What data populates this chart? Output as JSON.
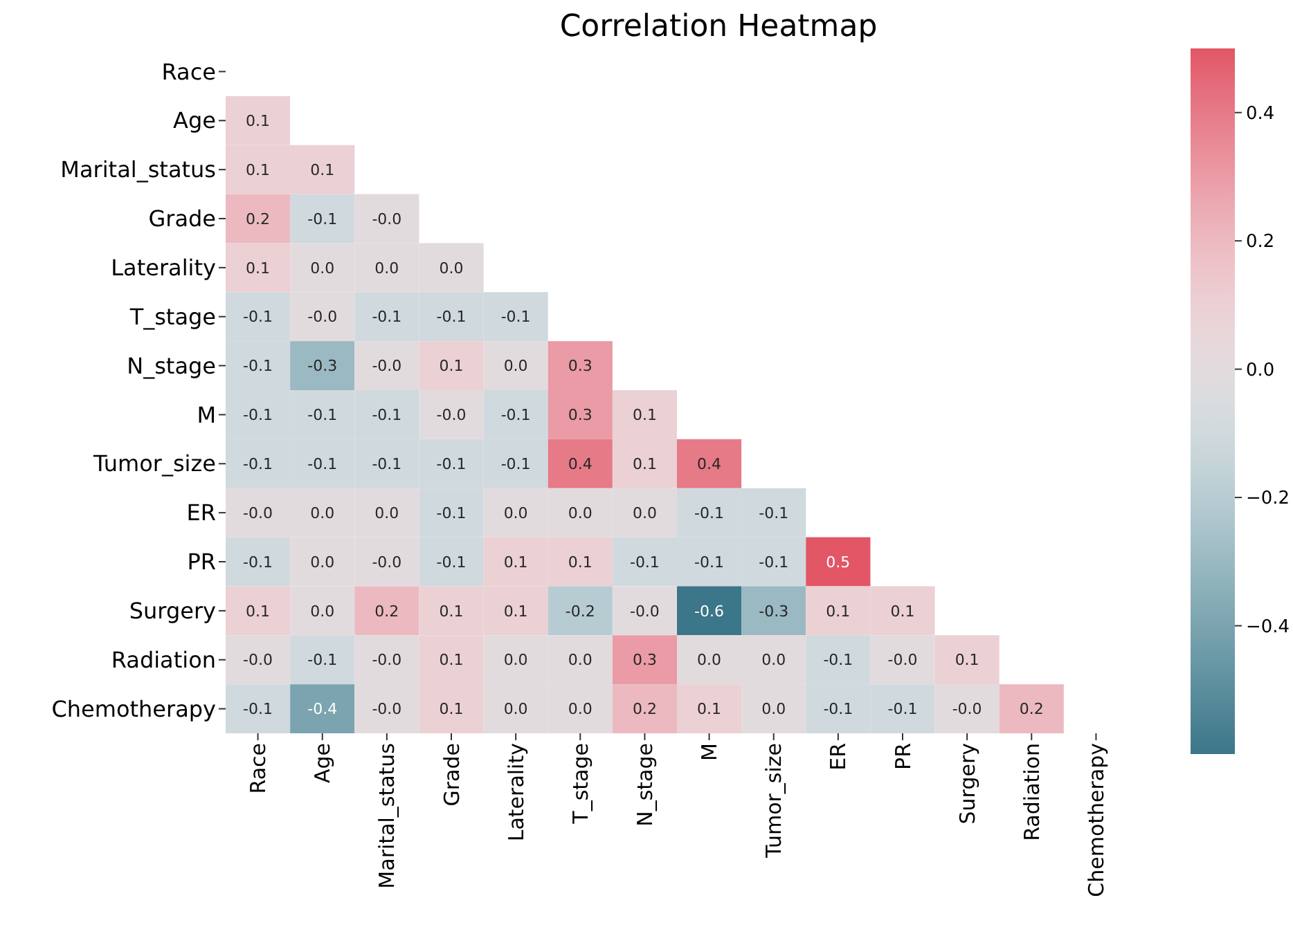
{
  "chart_data": {
    "type": "heatmap",
    "title": "Correlation Heatmap",
    "categories": [
      "Race",
      "Age",
      "Marital_status",
      "Grade",
      "Laterality",
      "T_stage",
      "N_stage",
      "M",
      "Tumor_size",
      "ER",
      "PR",
      "Surgery",
      "Radiation",
      "Chemotherapy"
    ],
    "y_categories": [
      "Race",
      "Age",
      "Marital_status",
      "Grade",
      "Laterality",
      "T_stage",
      "N_stage",
      "M",
      "Tumor_size",
      "ER",
      "PR",
      "Surgery",
      "Radiation",
      "Chemotherapy"
    ],
    "cells": [
      [
        null,
        null,
        null,
        null,
        null,
        null,
        null,
        null,
        null,
        null,
        null,
        null,
        null,
        null
      ],
      [
        0.1,
        null,
        null,
        null,
        null,
        null,
        null,
        null,
        null,
        null,
        null,
        null,
        null,
        null
      ],
      [
        0.1,
        0.1,
        null,
        null,
        null,
        null,
        null,
        null,
        null,
        null,
        null,
        null,
        null,
        null
      ],
      [
        0.2,
        -0.1,
        -0.0,
        null,
        null,
        null,
        null,
        null,
        null,
        null,
        null,
        null,
        null,
        null
      ],
      [
        0.1,
        0.0,
        0.0,
        0.0,
        null,
        null,
        null,
        null,
        null,
        null,
        null,
        null,
        null,
        null
      ],
      [
        -0.1,
        -0.0,
        -0.1,
        -0.1,
        -0.1,
        null,
        null,
        null,
        null,
        null,
        null,
        null,
        null,
        null
      ],
      [
        -0.1,
        -0.3,
        -0.0,
        0.1,
        0.0,
        0.3,
        null,
        null,
        null,
        null,
        null,
        null,
        null,
        null
      ],
      [
        -0.1,
        -0.1,
        -0.1,
        -0.0,
        -0.1,
        0.3,
        0.1,
        null,
        null,
        null,
        null,
        null,
        null,
        null
      ],
      [
        -0.1,
        -0.1,
        -0.1,
        -0.1,
        -0.1,
        0.4,
        0.1,
        0.4,
        null,
        null,
        null,
        null,
        null,
        null
      ],
      [
        -0.0,
        0.0,
        0.0,
        -0.1,
        0.0,
        0.0,
        0.0,
        -0.1,
        -0.1,
        null,
        null,
        null,
        null,
        null
      ],
      [
        -0.1,
        0.0,
        -0.0,
        -0.1,
        0.1,
        0.1,
        -0.1,
        -0.1,
        -0.1,
        0.5,
        null,
        null,
        null,
        null
      ],
      [
        0.1,
        0.0,
        0.2,
        0.1,
        0.1,
        -0.2,
        -0.0,
        -0.6,
        -0.3,
        0.1,
        0.1,
        null,
        null,
        null
      ],
      [
        -0.0,
        -0.1,
        -0.0,
        0.1,
        0.0,
        0.0,
        0.3,
        0.0,
        0.0,
        -0.1,
        -0.0,
        0.1,
        null,
        null
      ],
      [
        -0.1,
        -0.4,
        -0.0,
        0.1,
        0.0,
        0.0,
        0.2,
        0.1,
        0.0,
        -0.1,
        -0.1,
        -0.0,
        0.2,
        null
      ]
    ],
    "cell_labels": [
      [
        null,
        null,
        null,
        null,
        null,
        null,
        null,
        null,
        null,
        null,
        null,
        null,
        null,
        null
      ],
      [
        "0.1",
        null,
        null,
        null,
        null,
        null,
        null,
        null,
        null,
        null,
        null,
        null,
        null,
        null
      ],
      [
        "0.1",
        "0.1",
        null,
        null,
        null,
        null,
        null,
        null,
        null,
        null,
        null,
        null,
        null,
        null
      ],
      [
        "0.2",
        "-0.1",
        "-0.0",
        null,
        null,
        null,
        null,
        null,
        null,
        null,
        null,
        null,
        null,
        null
      ],
      [
        "0.1",
        "0.0",
        "0.0",
        "0.0",
        null,
        null,
        null,
        null,
        null,
        null,
        null,
        null,
        null,
        null
      ],
      [
        "-0.1",
        "-0.0",
        "-0.1",
        "-0.1",
        "-0.1",
        null,
        null,
        null,
        null,
        null,
        null,
        null,
        null,
        null
      ],
      [
        "-0.1",
        "-0.3",
        "-0.0",
        "0.1",
        "0.0",
        "0.3",
        null,
        null,
        null,
        null,
        null,
        null,
        null,
        null
      ],
      [
        "-0.1",
        "-0.1",
        "-0.1",
        "-0.0",
        "-0.1",
        "0.3",
        "0.1",
        null,
        null,
        null,
        null,
        null,
        null,
        null
      ],
      [
        "-0.1",
        "-0.1",
        "-0.1",
        "-0.1",
        "-0.1",
        "0.4",
        "0.1",
        "0.4",
        null,
        null,
        null,
        null,
        null,
        null
      ],
      [
        "-0.0",
        "0.0",
        "0.0",
        "-0.1",
        "0.0",
        "0.0",
        "0.0",
        "-0.1",
        "-0.1",
        null,
        null,
        null,
        null,
        null
      ],
      [
        "-0.1",
        "0.0",
        "-0.0",
        "-0.1",
        "0.1",
        "0.1",
        "-0.1",
        "-0.1",
        "-0.1",
        "0.5",
        null,
        null,
        null,
        null
      ],
      [
        "0.1",
        "0.0",
        "0.2",
        "0.1",
        "0.1",
        "-0.2",
        "-0.0",
        "-0.6",
        "-0.3",
        "0.1",
        "0.1",
        null,
        null,
        null
      ],
      [
        "-0.0",
        "-0.1",
        "-0.0",
        "0.1",
        "0.0",
        "0.0",
        "0.3",
        "0.0",
        "0.0",
        "-0.1",
        "-0.0",
        "0.1",
        null,
        null
      ],
      [
        "-0.1",
        "-0.4",
        "-0.0",
        "0.1",
        "0.0",
        "0.0",
        "0.2",
        "0.1",
        "0.0",
        "-0.1",
        "-0.1",
        "-0.0",
        "0.2",
        null
      ]
    ],
    "clim": [
      -0.6,
      0.5
    ],
    "cticks": [
      {
        "value": -0.4,
        "label": "−0.4"
      },
      {
        "value": -0.2,
        "label": "−0.2"
      },
      {
        "value": 0.0,
        "label": "0.0"
      },
      0.2,
      0.4
    ]
  }
}
